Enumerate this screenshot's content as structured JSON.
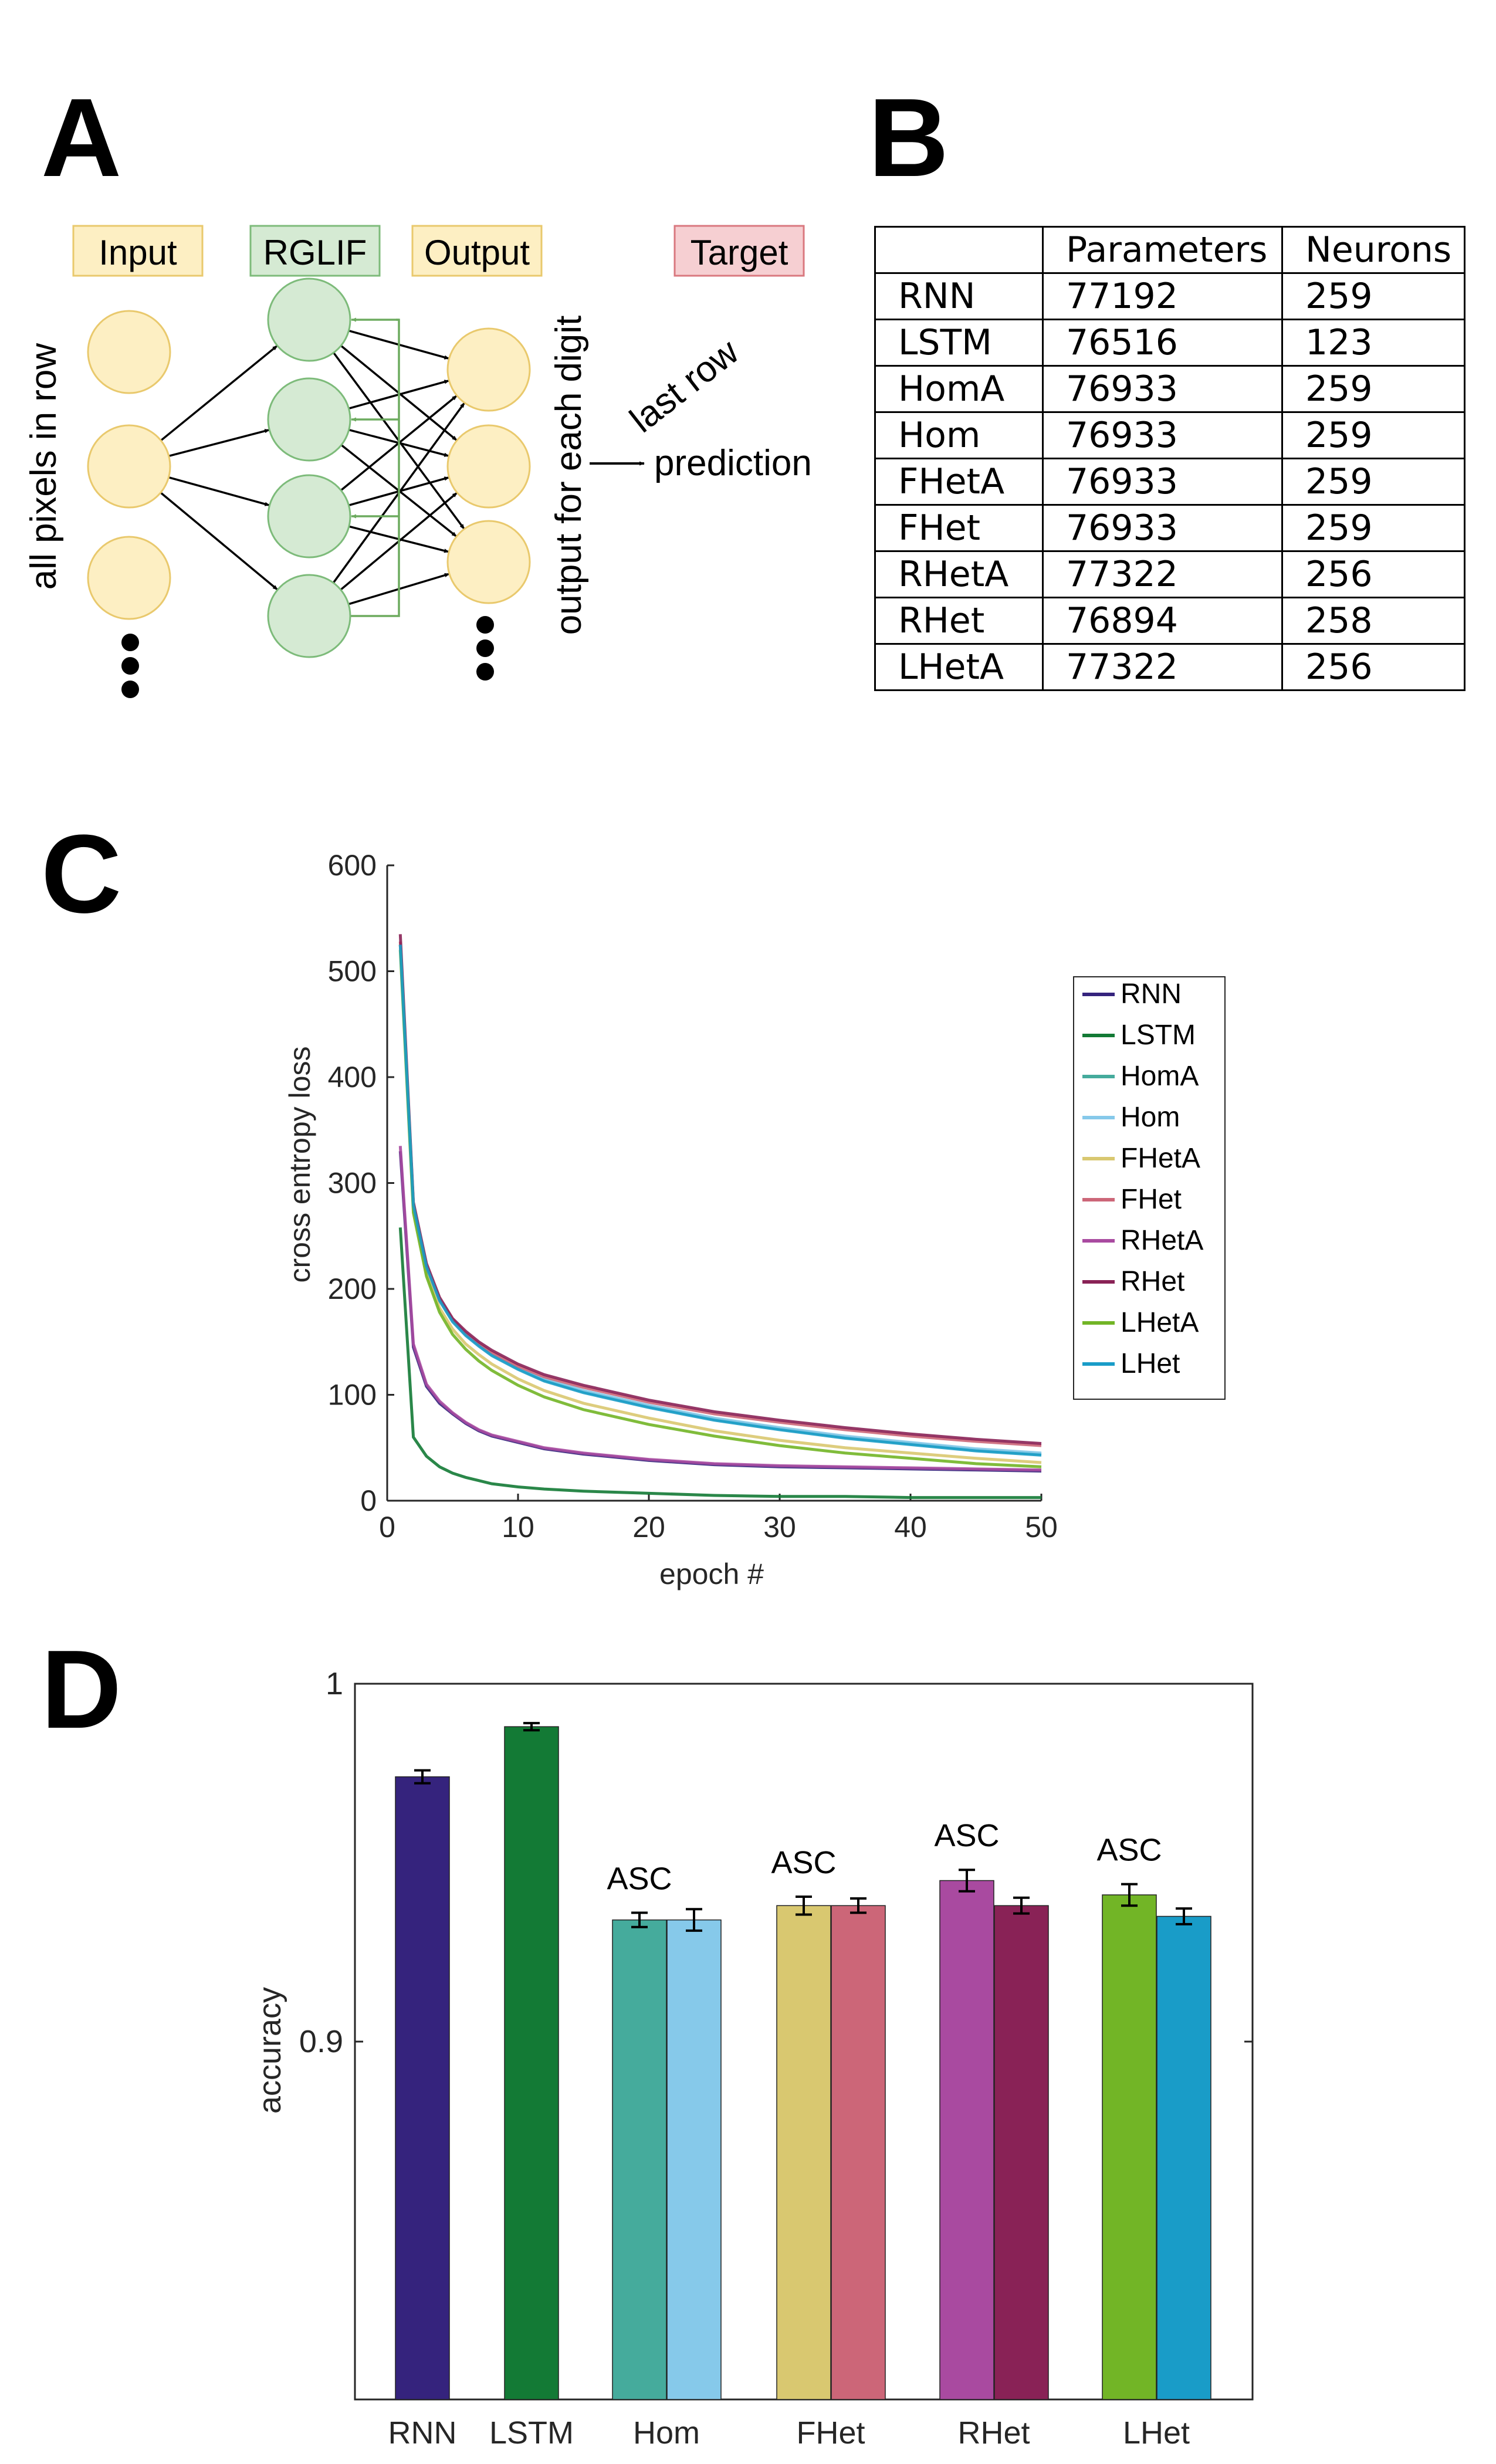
{
  "panels": {
    "a": "A",
    "b": "B",
    "c": "C",
    "d": "D"
  },
  "diagram": {
    "labels": {
      "input": "Input",
      "rglif": "RGLIF",
      "output": "Output",
      "target": "Target"
    },
    "left_caption": "all pixels in row",
    "output_caption": "output for each digit",
    "last_row": "last row",
    "prediction": "prediction",
    "colors": {
      "input_fill": "#fdefc3",
      "input_stroke": "#e9c96d",
      "rglif_fill": "#d5ead3",
      "rglif_stroke": "#7dbb7a",
      "target_fill": "#f6cfd2",
      "target_stroke": "#d9787f",
      "recurrent_arrow": "#6dab5f"
    }
  },
  "table": {
    "headers": [
      "",
      "Parameters",
      "Neurons"
    ],
    "rows": [
      {
        "model": "RNN",
        "parameters": "77192",
        "neurons": "259"
      },
      {
        "model": "LSTM",
        "parameters": "76516",
        "neurons": "123"
      },
      {
        "model": "HomA",
        "parameters": "76933",
        "neurons": "259"
      },
      {
        "model": "Hom",
        "parameters": "76933",
        "neurons": "259"
      },
      {
        "model": "FHetA",
        "parameters": "76933",
        "neurons": "259"
      },
      {
        "model": "FHet",
        "parameters": "76933",
        "neurons": "259"
      },
      {
        "model": "RHetA",
        "parameters": "77322",
        "neurons": "256"
      },
      {
        "model": "RHet",
        "parameters": "76894",
        "neurons": "258"
      },
      {
        "model": "LHetA",
        "parameters": "77322",
        "neurons": "256"
      }
    ]
  },
  "chart_data": [
    {
      "type": "line",
      "xlabel": "epoch #",
      "ylabel": "cross entropy loss",
      "xlim": [
        0,
        50
      ],
      "ylim": [
        0,
        600
      ],
      "xticks": [
        0,
        10,
        20,
        30,
        40,
        50
      ],
      "yticks": [
        0,
        100,
        200,
        300,
        400,
        500,
        600
      ],
      "legend_position": "right",
      "x": [
        1,
        2,
        3,
        4,
        5,
        6,
        7,
        8,
        10,
        12,
        15,
        20,
        25,
        30,
        35,
        40,
        45,
        50
      ],
      "series": [
        {
          "name": "RNN",
          "color": "#35237d",
          "values": [
            330,
            145,
            108,
            92,
            82,
            73,
            66,
            61,
            55,
            49,
            44,
            38,
            34,
            32,
            31,
            30,
            29,
            28
          ]
        },
        {
          "name": "LSTM",
          "color": "#137a35",
          "values": [
            258,
            60,
            42,
            32,
            26,
            22,
            19,
            16,
            13,
            11,
            9,
            7,
            5,
            4,
            4,
            3,
            3,
            3
          ]
        },
        {
          "name": "HomA",
          "color": "#45ab9c",
          "values": [
            525,
            280,
            222,
            190,
            170,
            157,
            147,
            138,
            125,
            114,
            103,
            89,
            77,
            68,
            60,
            54,
            48,
            44
          ]
        },
        {
          "name": "Hom",
          "color": "#86c9ea",
          "values": [
            525,
            280,
            222,
            190,
            170,
            157,
            147,
            138,
            125,
            115,
            104,
            90,
            78,
            69,
            61,
            55,
            49,
            45
          ]
        },
        {
          "name": "FHetA",
          "color": "#d9c870",
          "values": [
            525,
            275,
            215,
            182,
            162,
            148,
            138,
            129,
            115,
            104,
            92,
            78,
            66,
            57,
            50,
            45,
            40,
            36
          ]
        },
        {
          "name": "FHet",
          "color": "#cc6678",
          "values": [
            528,
            280,
            222,
            190,
            171,
            158,
            148,
            140,
            127,
            117,
            107,
            93,
            82,
            74,
            67,
            61,
            56,
            52
          ]
        },
        {
          "name": "RHetA",
          "color": "#a94aa0",
          "values": [
            335,
            148,
            110,
            94,
            83,
            74,
            67,
            62,
            56,
            50,
            45,
            39,
            35,
            33,
            32,
            31,
            30,
            29
          ]
        },
        {
          "name": "RHet",
          "color": "#892256",
          "values": [
            535,
            282,
            224,
            192,
            172,
            160,
            150,
            142,
            129,
            119,
            109,
            95,
            84,
            76,
            69,
            63,
            58,
            54
          ]
        },
        {
          "name": "LHetA",
          "color": "#72b526",
          "values": [
            520,
            272,
            212,
            178,
            157,
            143,
            132,
            123,
            109,
            98,
            86,
            72,
            61,
            52,
            45,
            40,
            35,
            32
          ]
        },
        {
          "name": "LHet",
          "color": "#199cc8",
          "values": [
            525,
            279,
            221,
            189,
            169,
            156,
            146,
            137,
            124,
            113,
            102,
            88,
            76,
            67,
            59,
            53,
            47,
            43
          ]
        }
      ]
    },
    {
      "type": "bar",
      "ylabel": "accuracy",
      "ylim": [
        0.8,
        1.0
      ],
      "yticks": [
        "0.9",
        "1"
      ],
      "categories": [
        "RNN",
        "LSTM",
        "Hom",
        "FHet",
        "RHet",
        "LHet"
      ],
      "annotation": "ASC",
      "bars": [
        {
          "group": "RNN",
          "variant": "",
          "value": 0.974,
          "err": 0.0018,
          "color": "#35237d"
        },
        {
          "group": "LSTM",
          "variant": "",
          "value": 0.988,
          "err": 0.001,
          "color": "#137a35"
        },
        {
          "group": "Hom",
          "variant": "ASC",
          "value": 0.934,
          "err": 0.002,
          "color": "#45ab9c"
        },
        {
          "group": "Hom",
          "variant": "",
          "value": 0.934,
          "err": 0.003,
          "color": "#86c9ea"
        },
        {
          "group": "FHet",
          "variant": "ASC",
          "value": 0.938,
          "err": 0.0025,
          "color": "#d9c870"
        },
        {
          "group": "FHet",
          "variant": "",
          "value": 0.938,
          "err": 0.002,
          "color": "#cc6678"
        },
        {
          "group": "RHet",
          "variant": "ASC",
          "value": 0.945,
          "err": 0.003,
          "color": "#a94aa0"
        },
        {
          "group": "RHet",
          "variant": "",
          "value": 0.938,
          "err": 0.0022,
          "color": "#892256"
        },
        {
          "group": "LHet",
          "variant": "ASC",
          "value": 0.941,
          "err": 0.003,
          "color": "#72b526"
        },
        {
          "group": "LHet",
          "variant": "",
          "value": 0.935,
          "err": 0.0022,
          "color": "#199cc8"
        }
      ]
    }
  ]
}
